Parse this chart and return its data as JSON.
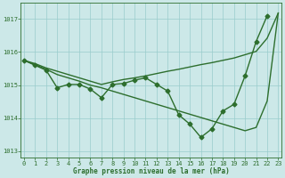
{
  "hours": [
    0,
    1,
    2,
    3,
    4,
    5,
    6,
    7,
    8,
    9,
    10,
    11,
    12,
    13,
    14,
    15,
    16,
    17,
    18,
    19,
    20,
    21,
    22,
    23
  ],
  "pressure_main": [
    1015.75,
    1015.6,
    1015.45,
    1014.92,
    1015.02,
    1015.02,
    1014.88,
    1014.62,
    1015.02,
    1015.05,
    1015.15,
    1015.22,
    1015.02,
    1014.82,
    1014.1,
    1013.82,
    1013.42,
    1013.68,
    1014.22,
    1014.42,
    1015.28,
    1016.32,
    1017.1,
    null
  ],
  "pressure_line1": [
    1015.75,
    1015.65,
    1015.52,
    1015.42,
    1015.32,
    1015.22,
    1015.12,
    1015.02,
    1015.1,
    1015.17,
    1015.22,
    1015.28,
    1015.35,
    1015.42,
    1015.48,
    1015.55,
    1015.62,
    1015.68,
    1015.75,
    1015.82,
    1015.92,
    1016.02,
    1016.42,
    1017.18
  ],
  "pressure_line2": [
    1015.75,
    1015.62,
    1015.48,
    1015.32,
    1015.22,
    1015.12,
    1015.0,
    1014.92,
    1014.82,
    1014.72,
    1014.62,
    1014.52,
    1014.42,
    1014.32,
    1014.22,
    1014.12,
    1014.02,
    1013.92,
    1013.82,
    1013.72,
    1013.62,
    1013.72,
    1014.52,
    1017.18
  ],
  "ylim": [
    1012.8,
    1017.5
  ],
  "yticks": [
    1013,
    1014,
    1015,
    1016,
    1017
  ],
  "xticks": [
    0,
    1,
    2,
    3,
    4,
    5,
    6,
    7,
    8,
    9,
    10,
    11,
    12,
    13,
    14,
    15,
    16,
    17,
    18,
    19,
    20,
    21,
    22,
    23
  ],
  "xlabel": "Graphe pression niveau de la mer (hPa)",
  "line_color": "#2d6e2d",
  "bg_color": "#cce8e8",
  "grid_color": "#99cccc",
  "marker": "D",
  "marker_size": 2.5,
  "line_width": 1.0
}
